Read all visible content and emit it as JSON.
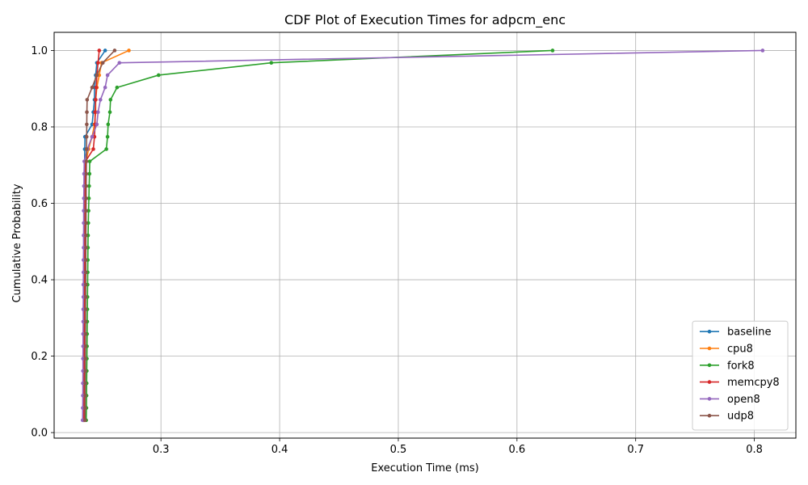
{
  "chart_data": {
    "type": "line",
    "title": "CDF Plot of Execution Times for adpcm_enc",
    "xlabel": "Execution Time (ms)",
    "ylabel": "Cumulative Probability",
    "xlim": [
      0.21,
      0.835
    ],
    "ylim": [
      -0.0145,
      1.0475
    ],
    "xticks": [
      0.3,
      0.4,
      0.5,
      0.6,
      0.7,
      0.8
    ],
    "xtick_labels": [
      "0.3",
      "0.4",
      "0.5",
      "0.6",
      "0.7",
      "0.8"
    ],
    "yticks": [
      0.0,
      0.2,
      0.4,
      0.6,
      0.8,
      1.0
    ],
    "ytick_labels": [
      "0.0",
      "0.2",
      "0.4",
      "0.6",
      "0.8",
      "1.0"
    ],
    "grid": true,
    "legend_position": "lower-right",
    "y_levels": [
      0.0323,
      0.0645,
      0.0968,
      0.129,
      0.1613,
      0.1935,
      0.2258,
      0.2581,
      0.2903,
      0.3226,
      0.3548,
      0.3871,
      0.4194,
      0.4516,
      0.4839,
      0.5161,
      0.5484,
      0.5806,
      0.6129,
      0.6452,
      0.6774,
      0.7097,
      0.7419,
      0.7742,
      0.8065,
      0.8387,
      0.871,
      0.9032,
      0.9355,
      0.9677,
      1.0
    ],
    "series": [
      {
        "name": "baseline",
        "color": "#1f77b4",
        "x": [
          0.2345,
          0.2346,
          0.2347,
          0.2347,
          0.2348,
          0.2348,
          0.2349,
          0.2349,
          0.235,
          0.235,
          0.2351,
          0.2351,
          0.2352,
          0.2352,
          0.2353,
          0.2353,
          0.2354,
          0.2354,
          0.2355,
          0.2355,
          0.2356,
          0.2357,
          0.2358,
          0.236,
          0.242,
          0.243,
          0.244,
          0.244,
          0.245,
          0.246,
          0.253
        ]
      },
      {
        "name": "cpu8",
        "color": "#ff7f0e",
        "x": [
          0.2355,
          0.2356,
          0.2357,
          0.2357,
          0.2358,
          0.2358,
          0.2359,
          0.2359,
          0.236,
          0.236,
          0.2361,
          0.2361,
          0.2362,
          0.2362,
          0.2363,
          0.2363,
          0.2364,
          0.2364,
          0.2365,
          0.2366,
          0.2368,
          0.237,
          0.239,
          0.242,
          0.244,
          0.245,
          0.245,
          0.246,
          0.248,
          0.25,
          0.273
        ]
      },
      {
        "name": "fork8",
        "color": "#2ca02c",
        "x": [
          0.237,
          0.2372,
          0.2373,
          0.2374,
          0.2375,
          0.2376,
          0.2377,
          0.2378,
          0.2379,
          0.238,
          0.2381,
          0.2382,
          0.2383,
          0.2384,
          0.2385,
          0.2386,
          0.2388,
          0.239,
          0.2393,
          0.2395,
          0.2398,
          0.24,
          0.254,
          0.255,
          0.2555,
          0.257,
          0.2575,
          0.263,
          0.298,
          0.393,
          0.63
        ]
      },
      {
        "name": "memcpy8",
        "color": "#d62728",
        "x": [
          0.235,
          0.2351,
          0.2352,
          0.2352,
          0.2353,
          0.2353,
          0.2354,
          0.2354,
          0.2355,
          0.2355,
          0.2356,
          0.2356,
          0.2357,
          0.2357,
          0.2358,
          0.2358,
          0.2359,
          0.2359,
          0.236,
          0.2361,
          0.2362,
          0.2364,
          0.243,
          0.244,
          0.2445,
          0.2445,
          0.245,
          0.2455,
          0.246,
          0.247,
          0.248
        ]
      },
      {
        "name": "open8",
        "color": "#9467bd",
        "x": [
          0.234,
          0.2341,
          0.2342,
          0.2342,
          0.2343,
          0.2343,
          0.2344,
          0.2344,
          0.2345,
          0.2345,
          0.2346,
          0.2346,
          0.2347,
          0.2347,
          0.2348,
          0.2348,
          0.2349,
          0.2349,
          0.235,
          0.2351,
          0.2352,
          0.2354,
          0.238,
          0.242,
          0.246,
          0.247,
          0.249,
          0.253,
          0.255,
          0.265,
          0.807
        ]
      },
      {
        "name": "udp8",
        "color": "#8c564b",
        "x": [
          0.236,
          0.2361,
          0.2362,
          0.2362,
          0.2363,
          0.2363,
          0.2364,
          0.2364,
          0.2365,
          0.2365,
          0.2366,
          0.2366,
          0.2367,
          0.2367,
          0.2368,
          0.2368,
          0.2369,
          0.2369,
          0.237,
          0.237,
          0.2371,
          0.2372,
          0.2373,
          0.2374,
          0.2375,
          0.2376,
          0.2378,
          0.242,
          0.246,
          0.251,
          0.261
        ]
      }
    ]
  }
}
